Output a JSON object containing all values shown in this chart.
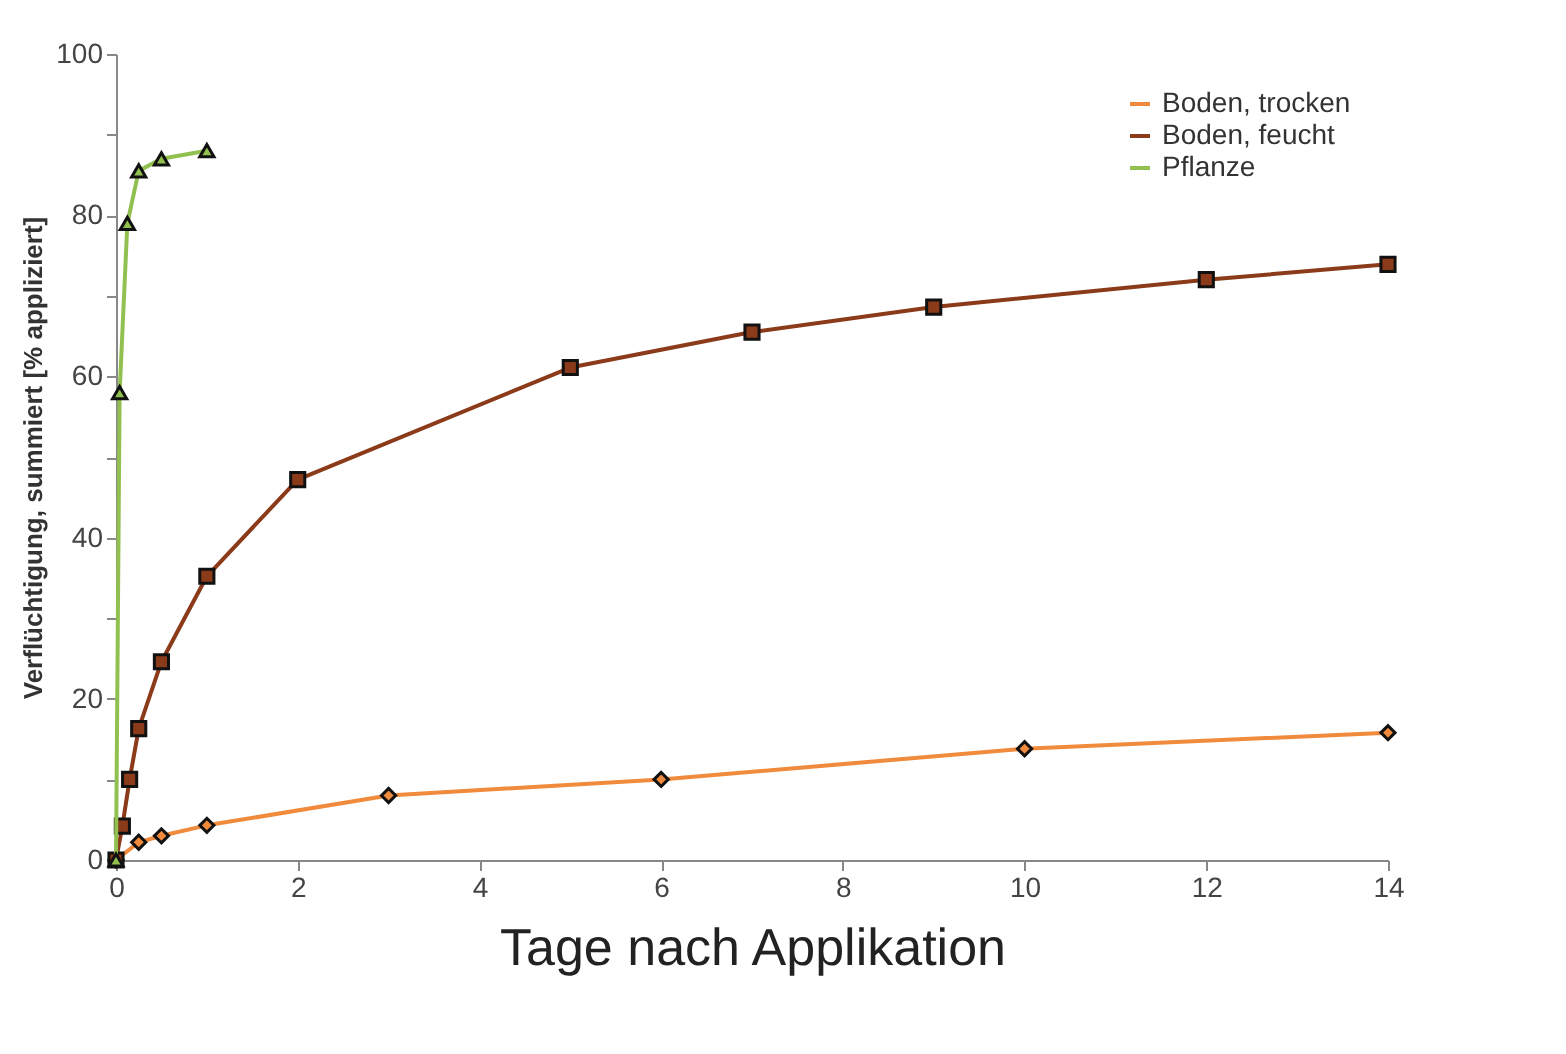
{
  "chart_data": {
    "type": "line",
    "xlabel": "Tage nach Applikation",
    "ylabel": "Verflüchtigung, summiert [% appliziert]",
    "xlim": [
      0,
      14
    ],
    "xticks": [
      0,
      2,
      4,
      6,
      8,
      10,
      12,
      14
    ],
    "ylim": [
      0,
      100
    ],
    "yticks": [
      0,
      {
        "value": 10,
        "label": null
      },
      20,
      {
        "value": 30,
        "label": null
      },
      40,
      {
        "value": 50,
        "label": null
      },
      60,
      {
        "value": 70,
        "label": null
      },
      80,
      {
        "value": 90,
        "label": null
      },
      100
    ],
    "grid": false,
    "legend": "top right",
    "line_style": "solid",
    "series": [
      {
        "name": "Boden, trocken",
        "color": "#f08a3c",
        "marker": "diamond",
        "x": [
          0,
          0.25,
          0.5,
          1,
          3,
          6,
          10,
          14
        ],
        "values": [
          0,
          2.2,
          3,
          4.3,
          8,
          10,
          13.8,
          15.8
        ]
      },
      {
        "name": "Boden, feucht",
        "color": "#8b3a1a",
        "marker": "square",
        "x": [
          0,
          0.07,
          0.15,
          0.25,
          0.5,
          1,
          2,
          5,
          7,
          9,
          12,
          14
        ],
        "values": [
          0,
          4.2,
          10,
          16.3,
          24.6,
          35.2,
          47.2,
          61.1,
          65.5,
          68.6,
          72,
          73.9
        ]
      },
      {
        "name": "Pflanze",
        "color": "#92c050",
        "marker": "triangle",
        "x": [
          0,
          0.04,
          0.125,
          0.25,
          0.5,
          1
        ],
        "values": [
          0,
          58,
          79,
          85.5,
          87,
          88
        ]
      }
    ]
  }
}
